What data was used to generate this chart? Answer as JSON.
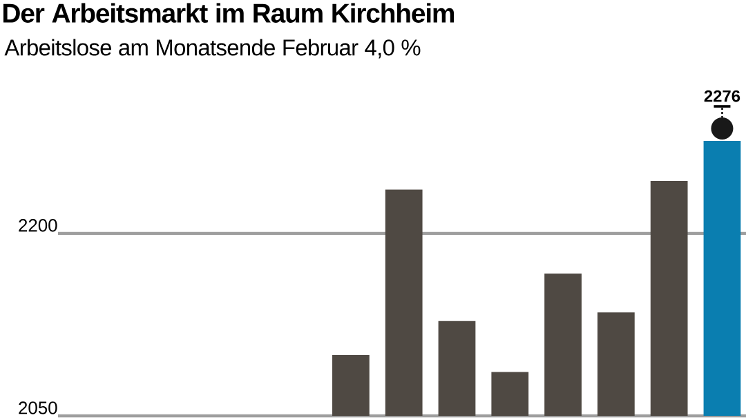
{
  "chart_data": {
    "type": "bar",
    "title": "Der Arbeitsmarkt im Raum Kirchheim",
    "subtitle": "Arbeitslose am Monatsende Februar 4,0 %",
    "categories": [
      null,
      null,
      null,
      null,
      null,
      null,
      null,
      null,
      null,
      null,
      null,
      null,
      null
    ],
    "values": [
      null,
      null,
      null,
      null,
      null,
      2100,
      2236,
      2128,
      2086,
      2167,
      2135,
      2243,
      2276
    ],
    "colors": [
      "#4f4943",
      "#4f4943",
      "#4f4943",
      "#4f4943",
      "#4f4943",
      "#4f4943",
      "#4f4943",
      "#4f4943",
      "#4f4943",
      "#4f4943",
      "#4f4943",
      "#4f4943",
      "#0a7eb0"
    ],
    "value_labels": [
      null,
      null,
      null,
      null,
      null,
      null,
      null,
      null,
      null,
      null,
      null,
      null,
      "2276"
    ],
    "ylim": [
      2050,
      2276
    ],
    "yticks": [
      2050,
      2200
    ],
    "grid": "y"
  }
}
